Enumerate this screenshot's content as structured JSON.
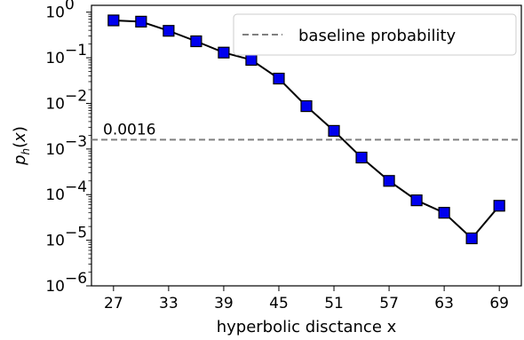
{
  "chart_data": {
    "type": "line",
    "title": "",
    "xlabel": "hyperbolic disctance x",
    "ylabel_main": "p",
    "ylabel_sub": "h",
    "ylabel_tail": "(x)",
    "yscale": "log",
    "xlim": [
      24.6,
      71.4
    ],
    "ylim_exp": [
      -6,
      0.15
    ],
    "x_ticks": [
      27,
      33,
      39,
      45,
      51,
      57,
      63,
      69
    ],
    "y_ticks_exp": [
      0,
      -1,
      -2,
      -3,
      -4,
      -5,
      -6
    ],
    "y_tick_base": "10",
    "grid": false,
    "legend_position": "top-right",
    "series": [
      {
        "marker": "square",
        "color": "#0000ee",
        "line_color": "#000000",
        "x": [
          27,
          30,
          33,
          36,
          39,
          42,
          45,
          48,
          51,
          54,
          57,
          60,
          63,
          66,
          69
        ],
        "y": [
          0.66,
          0.62,
          0.39,
          0.23,
          0.13,
          0.09,
          0.035,
          0.0087,
          0.0025,
          0.00065,
          0.0002,
          7.5e-05,
          4e-05,
          1.1e-05,
          5.7e-05
        ]
      }
    ],
    "baseline": {
      "value": 0.0016,
      "label": "0.0016",
      "legend_label": "baseline probability",
      "color": "#808080",
      "style": "dashed"
    }
  }
}
